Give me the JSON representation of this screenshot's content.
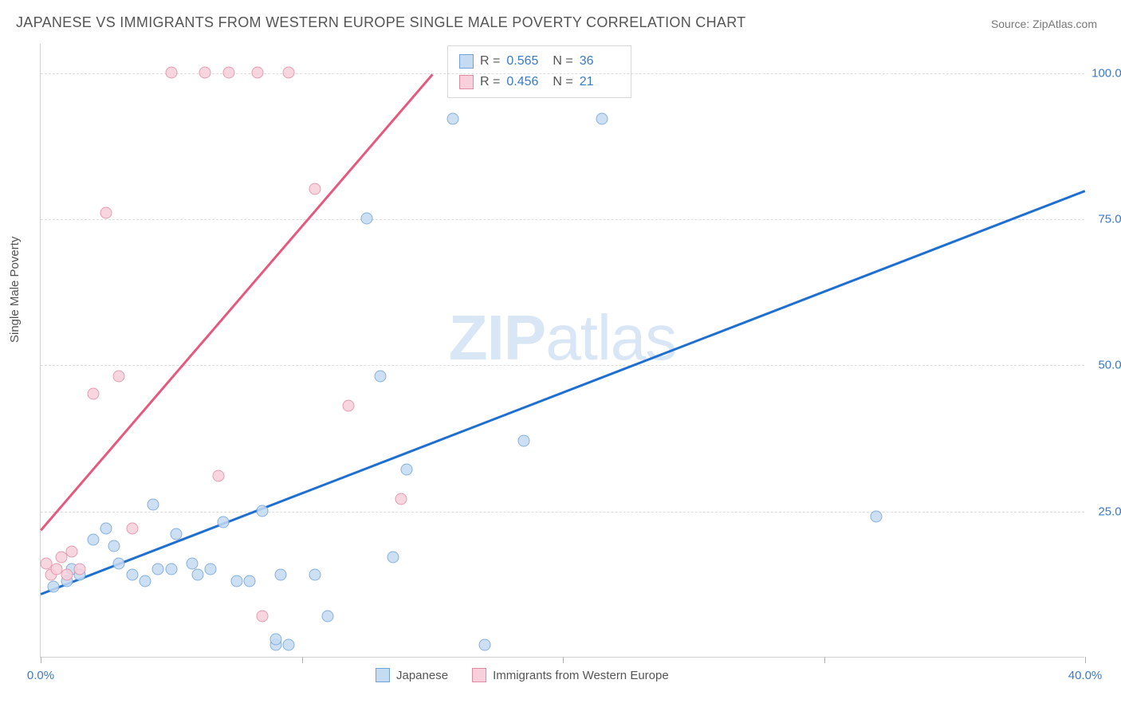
{
  "title": "JAPANESE VS IMMIGRANTS FROM WESTERN EUROPE SINGLE MALE POVERTY CORRELATION CHART",
  "source": "Source: ZipAtlas.com",
  "y_axis_label": "Single Male Poverty",
  "watermark_bold": "ZIP",
  "watermark_rest": "atlas",
  "chart": {
    "type": "scatter",
    "background_color": "#ffffff",
    "grid_color": "#dcdcdc",
    "axis_color": "#d0d0d0",
    "tick_label_color": "#3a7ac8",
    "x_range": [
      0,
      40
    ],
    "y_range": [
      0,
      105
    ],
    "x_ticks": [
      0,
      10,
      20,
      30,
      40
    ],
    "x_tick_labels": [
      "0.0%",
      "",
      "",
      "",
      "40.0%"
    ],
    "y_gridlines": [
      25,
      50,
      75,
      100
    ],
    "y_tick_labels": [
      "25.0%",
      "50.0%",
      "75.0%",
      "100.0%"
    ],
    "series": [
      {
        "name": "Japanese",
        "fill": "#c5dbf2",
        "stroke": "#6fa3d8",
        "trend_color": "#1f6fd1",
        "trend_start": [
          0,
          11
        ],
        "trend_end": [
          40,
          80
        ],
        "r_value": "0.565",
        "n_value": "36",
        "points": [
          [
            0.5,
            12
          ],
          [
            1,
            13
          ],
          [
            1.2,
            15
          ],
          [
            1.5,
            14
          ],
          [
            2,
            20
          ],
          [
            2.5,
            22
          ],
          [
            2.8,
            19
          ],
          [
            3,
            16
          ],
          [
            3.5,
            14
          ],
          [
            4,
            13
          ],
          [
            4.3,
            26
          ],
          [
            4.5,
            15
          ],
          [
            5,
            15
          ],
          [
            5.2,
            21
          ],
          [
            5.8,
            16
          ],
          [
            6,
            14
          ],
          [
            6.5,
            15
          ],
          [
            7,
            23
          ],
          [
            7.5,
            13
          ],
          [
            8,
            13
          ],
          [
            8.5,
            25
          ],
          [
            9,
            2
          ],
          [
            9,
            3
          ],
          [
            9.2,
            14
          ],
          [
            9.5,
            2
          ],
          [
            10.5,
            14
          ],
          [
            11,
            7
          ],
          [
            12.5,
            75
          ],
          [
            13,
            48
          ],
          [
            13.5,
            17
          ],
          [
            14,
            32
          ],
          [
            15.8,
            92
          ],
          [
            17,
            2
          ],
          [
            18.5,
            37
          ],
          [
            21.5,
            92
          ],
          [
            32,
            24
          ]
        ]
      },
      {
        "name": "Immigrants from Western Europe",
        "fill": "#f7d0db",
        "stroke": "#e28aa3",
        "trend_color": "#e45a7e",
        "trend_start": [
          0,
          22
        ],
        "trend_end": [
          15,
          100
        ],
        "r_value": "0.456",
        "n_value": "21",
        "points": [
          [
            0.2,
            16
          ],
          [
            0.4,
            14
          ],
          [
            0.6,
            15
          ],
          [
            0.8,
            17
          ],
          [
            1,
            14
          ],
          [
            1.2,
            18
          ],
          [
            1.5,
            15
          ],
          [
            2,
            45
          ],
          [
            2.5,
            76
          ],
          [
            3,
            48
          ],
          [
            3.5,
            22
          ],
          [
            5,
            100
          ],
          [
            6.3,
            100
          ],
          [
            6.8,
            31
          ],
          [
            7.2,
            100
          ],
          [
            8.3,
            100
          ],
          [
            8.5,
            7
          ],
          [
            9.5,
            100
          ],
          [
            10.5,
            80
          ],
          [
            11.8,
            43
          ],
          [
            13.8,
            27
          ]
        ]
      }
    ]
  },
  "stats_legend": {
    "r_label": "R =",
    "n_label": "N ="
  },
  "bottom_legend": {
    "items": [
      "Japanese",
      "Immigrants from Western Europe"
    ]
  }
}
